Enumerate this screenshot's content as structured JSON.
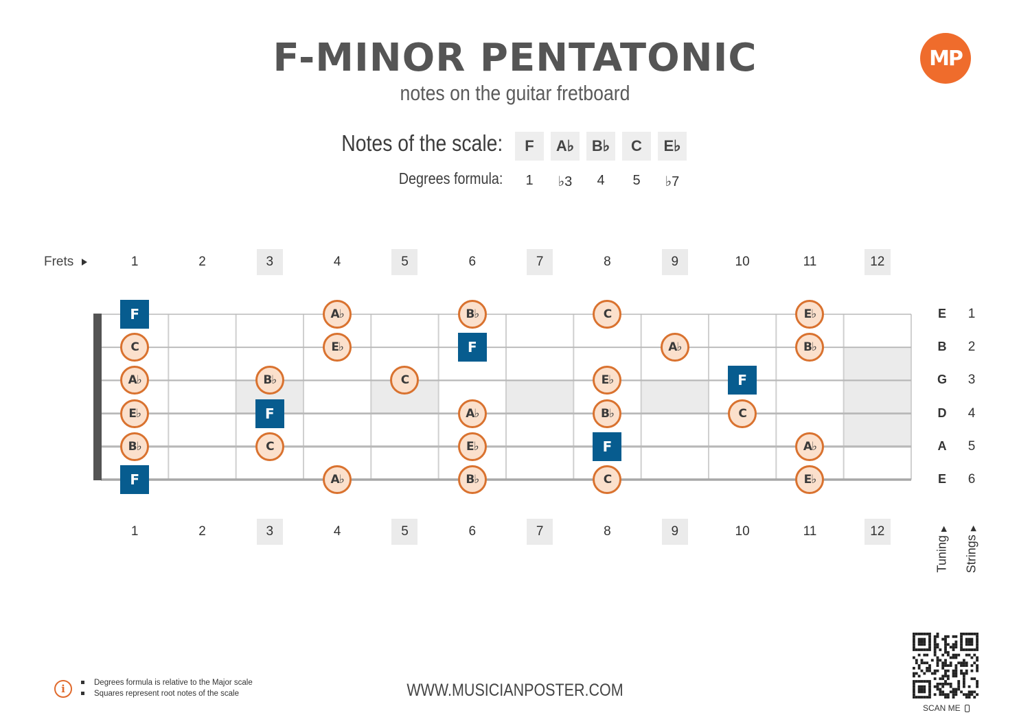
{
  "header": {
    "title": "F-MINOR PENTATONIC",
    "subtitle": "notes on the guitar fretboard",
    "logo_text": "MP"
  },
  "scale": {
    "notes_label": "Notes of the scale:",
    "degrees_label": "Degrees formula:",
    "notes": [
      "F",
      "A♭",
      "B♭",
      "C",
      "E♭"
    ],
    "degrees": [
      "1",
      "♭3",
      "4",
      "5",
      "♭7"
    ]
  },
  "fretboard": {
    "frets_label": "Frets",
    "frets": [
      "1",
      "2",
      "3",
      "4",
      "5",
      "6",
      "7",
      "8",
      "9",
      "10",
      "11",
      "12"
    ],
    "marked_frets": [
      3,
      5,
      7,
      9,
      12
    ],
    "tuning": [
      "E",
      "B",
      "G",
      "D",
      "A",
      "E"
    ],
    "string_numbers": [
      "1",
      "2",
      "3",
      "4",
      "5",
      "6"
    ],
    "tuning_label": "Tuning",
    "strings_label": "Strings",
    "positions": [
      {
        "string": 1,
        "fret": 1,
        "note": "F",
        "root": true
      },
      {
        "string": 1,
        "fret": 4,
        "note": "A♭",
        "root": false
      },
      {
        "string": 1,
        "fret": 6,
        "note": "B♭",
        "root": false
      },
      {
        "string": 1,
        "fret": 8,
        "note": "C",
        "root": false
      },
      {
        "string": 1,
        "fret": 11,
        "note": "E♭",
        "root": false
      },
      {
        "string": 2,
        "fret": 1,
        "note": "C",
        "root": false
      },
      {
        "string": 2,
        "fret": 4,
        "note": "E♭",
        "root": false
      },
      {
        "string": 2,
        "fret": 6,
        "note": "F",
        "root": true
      },
      {
        "string": 2,
        "fret": 9,
        "note": "A♭",
        "root": false
      },
      {
        "string": 2,
        "fret": 11,
        "note": "B♭",
        "root": false
      },
      {
        "string": 3,
        "fret": 1,
        "note": "A♭",
        "root": false
      },
      {
        "string": 3,
        "fret": 3,
        "note": "B♭",
        "root": false
      },
      {
        "string": 3,
        "fret": 5,
        "note": "C",
        "root": false
      },
      {
        "string": 3,
        "fret": 8,
        "note": "E♭",
        "root": false
      },
      {
        "string": 3,
        "fret": 10,
        "note": "F",
        "root": true
      },
      {
        "string": 4,
        "fret": 1,
        "note": "E♭",
        "root": false
      },
      {
        "string": 4,
        "fret": 3,
        "note": "F",
        "root": true
      },
      {
        "string": 4,
        "fret": 6,
        "note": "A♭",
        "root": false
      },
      {
        "string": 4,
        "fret": 8,
        "note": "B♭",
        "root": false
      },
      {
        "string": 4,
        "fret": 10,
        "note": "C",
        "root": false
      },
      {
        "string": 5,
        "fret": 1,
        "note": "B♭",
        "root": false
      },
      {
        "string": 5,
        "fret": 3,
        "note": "C",
        "root": false
      },
      {
        "string": 5,
        "fret": 6,
        "note": "E♭",
        "root": false
      },
      {
        "string": 5,
        "fret": 8,
        "note": "F",
        "root": true
      },
      {
        "string": 5,
        "fret": 11,
        "note": "A♭",
        "root": false
      },
      {
        "string": 6,
        "fret": 1,
        "note": "F",
        "root": true
      },
      {
        "string": 6,
        "fret": 4,
        "note": "A♭",
        "root": false
      },
      {
        "string": 6,
        "fret": 6,
        "note": "B♭",
        "root": false
      },
      {
        "string": 6,
        "fret": 8,
        "note": "C",
        "root": false
      },
      {
        "string": 6,
        "fret": 11,
        "note": "E♭",
        "root": false
      }
    ]
  },
  "footer": {
    "info_items": [
      "Degrees formula is relative to the Major scale",
      "Squares represent root notes of the scale"
    ],
    "url": "WWW.MUSICIANPOSTER.COM",
    "scan_label": "SCAN ME"
  },
  "colors": {
    "root_fill": "#075c8f",
    "note_fill": "#fbe0cc",
    "note_border": "#d9722f",
    "accent": "#ef6c2c"
  }
}
